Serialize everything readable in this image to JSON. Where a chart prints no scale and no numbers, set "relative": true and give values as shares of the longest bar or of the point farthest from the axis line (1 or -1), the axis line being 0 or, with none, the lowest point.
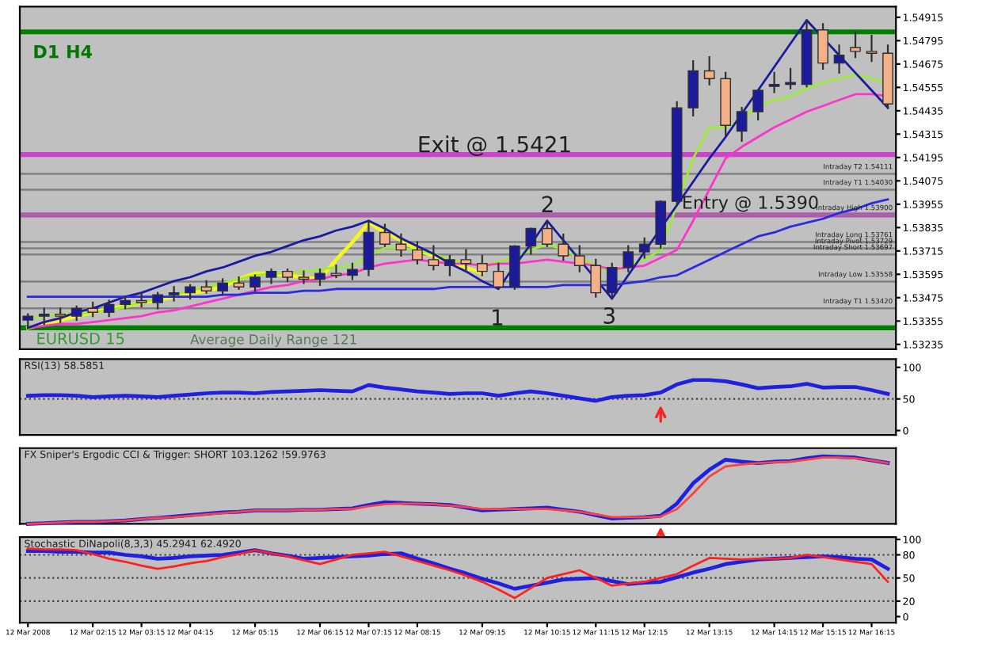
{
  "chart_data": [
    {
      "type": "candlestick",
      "tick_labels": "y",
      "ylim": [
        1.5321,
        1.5497
      ],
      "yticks": [
        1.54915,
        1.54795,
        1.54675,
        1.54555,
        1.54435,
        1.54315,
        1.54195,
        1.54075,
        1.53955,
        1.53835,
        1.53715,
        1.53595,
        1.53475,
        1.53355,
        1.53235
      ],
      "categories": [
        null,
        null,
        null,
        null,
        null,
        null,
        null,
        null,
        null,
        null,
        null,
        null,
        null,
        null,
        null,
        null,
        null,
        null,
        null,
        null,
        null,
        null,
        null,
        null,
        null,
        null,
        null,
        null,
        null,
        null,
        null,
        null,
        null,
        null,
        null,
        null,
        null,
        null,
        null,
        null,
        null,
        null,
        null,
        null,
        null,
        null,
        null,
        null,
        null,
        null,
        null,
        null,
        null,
        null
      ],
      "ohlc": [
        [
          1.5336,
          1.5339,
          1.5332,
          1.5338
        ],
        [
          1.5338,
          1.5342,
          1.5334,
          1.5339
        ],
        [
          1.5339,
          1.5342,
          1.5335,
          1.5338
        ],
        [
          1.5338,
          1.5343,
          1.5336,
          1.5342
        ],
        [
          1.5342,
          1.5345,
          1.5338,
          1.534
        ],
        [
          1.534,
          1.5346,
          1.5338,
          1.5344
        ],
        [
          1.5344,
          1.5348,
          1.5342,
          1.5346
        ],
        [
          1.5346,
          1.535,
          1.5343,
          1.5345
        ],
        [
          1.5345,
          1.535,
          1.5342,
          1.5349
        ],
        [
          1.5349,
          1.5353,
          1.5346,
          1.535
        ],
        [
          1.535,
          1.5354,
          1.5347,
          1.5353
        ],
        [
          1.5353,
          1.5356,
          1.535,
          1.5351
        ],
        [
          1.5351,
          1.5357,
          1.5349,
          1.5355
        ],
        [
          1.5355,
          1.5358,
          1.5352,
          1.5353
        ],
        [
          1.5353,
          1.5359,
          1.5351,
          1.5358
        ],
        [
          1.5358,
          1.5362,
          1.5355,
          1.5361
        ],
        [
          1.5361,
          1.5362,
          1.5356,
          1.5358
        ],
        [
          1.5358,
          1.5361,
          1.5355,
          1.5357
        ],
        [
          1.5357,
          1.5362,
          1.5354,
          1.536
        ],
        [
          1.536,
          1.5364,
          1.5358,
          1.5359
        ],
        [
          1.5359,
          1.5365,
          1.5357,
          1.5362
        ],
        [
          1.5362,
          1.5387,
          1.5359,
          1.5381
        ],
        [
          1.5381,
          1.5385,
          1.5374,
          1.5375
        ],
        [
          1.5375,
          1.538,
          1.5369,
          1.5372
        ],
        [
          1.5372,
          1.5376,
          1.5365,
          1.5367
        ],
        [
          1.5367,
          1.5374,
          1.5362,
          1.5364
        ],
        [
          1.5364,
          1.5369,
          1.5359,
          1.5367
        ],
        [
          1.5367,
          1.5372,
          1.5362,
          1.5365
        ],
        [
          1.5365,
          1.5369,
          1.5359,
          1.5361
        ],
        [
          1.5361,
          1.5365,
          1.5352,
          1.5353
        ],
        [
          1.5353,
          1.5374,
          1.5352,
          1.5374
        ],
        [
          1.5374,
          1.5383,
          1.537,
          1.5383
        ],
        [
          1.5383,
          1.5387,
          1.5374,
          1.5375
        ],
        [
          1.5375,
          1.538,
          1.5367,
          1.5369
        ],
        [
          1.5369,
          1.5374,
          1.5361,
          1.5364
        ],
        [
          1.5364,
          1.5367,
          1.5348,
          1.535
        ],
        [
          1.535,
          1.5365,
          1.5347,
          1.5363
        ],
        [
          1.5363,
          1.5374,
          1.5361,
          1.5371
        ],
        [
          1.5371,
          1.5378,
          1.5368,
          1.5375
        ],
        [
          1.5375,
          1.5397,
          1.5373,
          1.5397
        ],
        [
          1.5397,
          1.5448,
          1.5395,
          1.5445
        ],
        [
          1.5445,
          1.5469,
          1.5441,
          1.5464
        ],
        [
          1.5464,
          1.5471,
          1.5457,
          1.546
        ],
        [
          1.546,
          1.5463,
          1.5431,
          1.5436
        ],
        [
          1.5433,
          1.5445,
          1.5428,
          1.5443
        ],
        [
          1.5443,
          1.5454,
          1.5439,
          1.5454
        ],
        [
          1.5456,
          1.5463,
          1.5453,
          1.5457
        ],
        [
          1.5457,
          1.5465,
          1.5455,
          1.5458
        ],
        [
          1.5457,
          1.549,
          1.5456,
          1.5485
        ],
        [
          1.5485,
          1.5488,
          1.5465,
          1.5468
        ],
        [
          1.5468,
          1.5477,
          1.5463,
          1.5472
        ],
        [
          1.5476,
          1.5484,
          1.5471,
          1.5474
        ],
        [
          1.5474,
          1.5482,
          1.5469,
          1.5473
        ],
        [
          1.5473,
          1.5477,
          1.5445,
          1.5447
        ]
      ],
      "colors": [
        "#1a1a9a",
        "#1a1a9a",
        "#f4b088",
        "#1a1a9a",
        "#f4b088",
        "#1a1a9a",
        "#1a1a9a",
        "#f4b088",
        "#1a1a9a",
        "#1a1a9a",
        "#1a1a9a",
        "#f4b088",
        "#1a1a9a",
        "#f4b088",
        "#1a1a9a",
        "#1a1a9a",
        "#f4b088",
        "#f4b088",
        "#1a1a9a",
        "#f4b088",
        "#1a1a9a",
        "#1a1a9a",
        "#f4b088",
        "#f4b088",
        "#f4b088",
        "#f4b088",
        "#1a1a9a",
        "#f4b088",
        "#f4b088",
        "#f4b088",
        "#1a1a9a",
        "#1a1a9a",
        "#f4b088",
        "#f4b088",
        "#f4b088",
        "#f4b088",
        "#1a1a9a",
        "#1a1a9a",
        "#1a1a9a",
        "#1a1a9a",
        "#1a1a9a",
        "#1a1a9a",
        "#f4b088",
        "#f4b088",
        "#1a1a9a",
        "#1a1a9a",
        "#1a1a9a",
        "#1a1a9a",
        "#1a1a9a",
        "#f4b088",
        "#1a1a9a",
        "#f4b088",
        "#f4b088",
        "#f4b088"
      ],
      "series": [
        {
          "type": "line",
          "color": "#f5f520",
          "values": [
            1.5332,
            1.5334,
            1.5336,
            1.5338,
            1.534,
            1.5342,
            1.5343,
            1.5345,
            1.5346,
            1.5348,
            1.535,
            1.5351,
            1.5353,
            1.5357,
            1.536,
            1.536,
            1.5359,
            1.5358,
            1.5357,
            1.5367,
            1.5376,
            1.5386,
            1.5381,
            1.5377,
            1.5372,
            1.5369,
            1.5366,
            1.5363,
            1.536,
            null,
            null,
            null,
            null,
            null,
            null,
            null,
            null,
            null,
            null,
            null,
            null,
            null,
            null,
            null,
            null,
            null,
            null,
            null,
            null,
            null,
            null,
            null,
            null,
            null
          ]
        },
        {
          "type": "line",
          "color": "#99ee33",
          "values": [
            1.5337,
            1.5338,
            1.5339,
            1.5339,
            1.534,
            1.5341,
            1.5343,
            1.5345,
            1.5347,
            1.5349,
            1.5351,
            1.5353,
            1.5355,
            1.5357,
            1.5359,
            1.536,
            1.536,
            1.5361,
            1.5362,
            1.5363,
            1.5364,
            1.5369,
            1.5373,
            1.5373,
            1.5372,
            1.537,
            1.5367,
            1.5366,
            1.5364,
            1.5366,
            1.5368,
            1.5372,
            1.5375,
            1.5372,
            1.5368,
            1.5364,
            1.536,
            1.5364,
            1.5367,
            1.5372,
            1.5395,
            1.5419,
            1.5435,
            1.5435,
            1.5439,
            1.5446,
            1.5449,
            1.5451,
            1.5455,
            1.5458,
            1.546,
            1.5462,
            1.546,
            1.5458
          ]
        },
        {
          "type": "line",
          "color": "#ff33cc",
          "values": [
            1.5332,
            1.5333,
            1.5334,
            1.5334,
            1.5335,
            1.5336,
            1.5337,
            1.5338,
            1.534,
            1.5341,
            1.5343,
            1.5345,
            1.5347,
            1.5349,
            1.5351,
            1.5353,
            1.5354,
            1.5356,
            1.5357,
            1.5359,
            1.536,
            1.5363,
            1.5365,
            1.5366,
            1.5367,
            1.5366,
            1.5365,
            1.5365,
            1.5364,
            1.5365,
            1.5365,
            1.5366,
            1.5367,
            1.5366,
            1.5365,
            1.5364,
            1.5362,
            1.5363,
            1.5364,
            1.5368,
            1.5372,
            1.5387,
            1.5403,
            1.5419,
            1.5425,
            1.543,
            1.5435,
            1.5439,
            1.5443,
            1.5446,
            1.5449,
            1.5452,
            1.5452,
            1.5451
          ]
        },
        {
          "type": "line",
          "color": "#1a1aa0",
          "values": [
            1.5332,
            1.5335,
            1.5337,
            1.534,
            1.5342,
            1.5345,
            1.5348,
            1.535,
            1.5353,
            1.5356,
            1.5358,
            1.5361,
            1.5363,
            1.5366,
            1.5369,
            1.5371,
            1.5374,
            1.5377,
            1.5379,
            1.5382,
            1.5384,
            1.5387,
            1.5383,
            1.5378,
            1.5374,
            1.537,
            1.5365,
            1.5361,
            1.5356,
            1.5352,
            1.5364,
            1.5375,
            1.5387,
            1.5377,
            1.5367,
            1.5357,
            1.5347,
            1.5359,
            1.5371,
            1.5383,
            1.5395,
            1.5407,
            1.5419,
            1.543,
            1.5442,
            1.5454,
            1.5466,
            1.5478,
            1.549,
            1.5481,
            1.5472,
            1.5463,
            1.5454,
            1.5445
          ]
        },
        {
          "type": "line",
          "color": "#2a2ae0",
          "values": [
            1.5348,
            1.5348,
            1.5348,
            1.5348,
            1.5348,
            1.5348,
            1.5348,
            1.5348,
            1.5348,
            1.5348,
            1.5348,
            1.5348,
            1.5349,
            1.5349,
            1.535,
            1.535,
            1.535,
            1.5351,
            1.5351,
            1.5352,
            1.5352,
            1.5352,
            1.5352,
            1.5352,
            1.5352,
            1.5352,
            1.5353,
            1.5353,
            1.5353,
            1.5353,
            1.5353,
            1.5353,
            1.5353,
            1.5354,
            1.5354,
            1.5354,
            1.5354,
            1.5355,
            1.5356,
            1.5358,
            1.5359,
            1.5363,
            1.5367,
            1.5371,
            1.5375,
            1.5379,
            1.5381,
            1.5384,
            1.5386,
            1.5388,
            1.5391,
            1.5393,
            1.5396,
            1.5398
          ]
        }
      ],
      "ref_lines": [
        {
          "axis": "y",
          "value": 1.5484,
          "color": "#008000"
        },
        {
          "axis": "y",
          "value": 1.5421,
          "color": "#cc44cc"
        },
        {
          "axis": "y",
          "value": 1.539,
          "color": "#cc44cc"
        },
        {
          "axis": "y",
          "value": 1.5332,
          "color": "#008000"
        },
        {
          "axis": "y",
          "value": 1.54111,
          "color": "#808080",
          "label": "Intraday T2 1.54111"
        },
        {
          "axis": "y",
          "value": 1.5403,
          "color": "#808080",
          "label": "Intraday T1 1.54030"
        },
        {
          "axis": "y",
          "value": 1.539,
          "color": "#808080",
          "label": "Intraday High 1.53900"
        },
        {
          "axis": "y",
          "value": 1.53761,
          "color": "#808080",
          "label": "Intraday Long 1.53761"
        },
        {
          "axis": "y",
          "value": 1.53729,
          "color": "#808080",
          "label": "Intraday Pivot 1.53729"
        },
        {
          "axis": "y",
          "value": 1.53697,
          "color": "#808080",
          "label": "Intraday Short 1.53697"
        },
        {
          "axis": "y",
          "value": 1.53558,
          "color": "#808080",
          "label": "Intraday Low 1.53558"
        },
        {
          "axis": "y",
          "value": 1.5342,
          "color": "#808080",
          "label": "Intraday T1 1.53420"
        }
      ],
      "annotations": [
        "D1 H4",
        "Exit @ 1.5421",
        "Entry @ 1.5390",
        "1",
        "2",
        "3",
        "EURUSD 15",
        "Average Daily Range 121"
      ]
    },
    {
      "type": "line",
      "title": "RSI(13) 58.5851",
      "tick_labels": "y",
      "ylim": [
        -7,
        113
      ],
      "yticks": [
        0,
        50,
        100
      ],
      "categories": [
        null,
        null,
        null,
        null,
        null,
        null,
        null,
        null,
        null,
        null,
        null,
        null,
        null,
        null,
        null,
        null,
        null,
        null,
        null,
        null,
        null,
        null,
        null,
        null,
        null,
        null,
        null,
        null,
        null,
        null,
        null,
        null,
        null,
        null,
        null,
        null,
        null,
        null,
        null,
        null,
        null,
        null,
        null,
        null,
        null,
        null,
        null,
        null,
        null,
        null,
        null,
        null,
        null,
        null
      ],
      "series": [
        {
          "color": "#2020e0",
          "values": [
            55,
            56,
            56,
            55,
            53,
            54,
            55,
            54,
            53,
            55,
            57,
            59,
            60,
            60,
            59,
            61,
            62,
            63,
            64,
            63,
            62,
            72,
            68,
            65,
            62,
            60,
            58,
            59,
            59,
            55,
            59,
            62,
            59,
            55,
            51,
            47,
            53,
            55,
            56,
            60,
            73,
            80,
            80,
            78,
            73,
            67,
            69,
            70,
            74,
            68,
            69,
            69,
            64,
            58
          ]
        }
      ],
      "ref_lines": [
        {
          "axis": "y",
          "value": 50,
          "color": "#404040",
          "line_style": "dotted"
        }
      ]
    },
    {
      "type": "line",
      "title": "FX Sniper's Ergodic CCI & Trigger: SHORT 103.1262 !59.9763",
      "relative": true,
      "tick_labels": false,
      "categories": [
        null,
        null,
        null,
        null,
        null,
        null,
        null,
        null,
        null,
        null,
        null,
        null,
        null,
        null,
        null,
        null,
        null,
        null,
        null,
        null,
        null,
        null,
        null,
        null,
        null,
        null,
        null,
        null,
        null,
        null,
        null,
        null,
        null,
        null,
        null,
        null,
        null,
        null,
        null,
        null,
        null,
        null,
        null,
        null,
        null,
        null,
        null,
        null,
        null,
        null,
        null,
        null,
        null,
        null
      ],
      "series": [
        {
          "color": "#2020e0",
          "values": [
            0,
            0.01,
            0.02,
            0.03,
            0.03,
            0.04,
            0.05,
            0.07,
            0.09,
            0.11,
            0.13,
            0.15,
            0.17,
            0.18,
            0.2,
            0.2,
            0.2,
            0.21,
            0.21,
            0.22,
            0.23,
            0.28,
            0.32,
            0.31,
            0.3,
            0.29,
            0.28,
            0.24,
            0.2,
            0.21,
            0.22,
            0.23,
            0.24,
            0.21,
            0.18,
            0.13,
            0.08,
            0.09,
            0.1,
            0.12,
            0.3,
            0.6,
            0.8,
            0.95,
            0.92,
            0.9,
            0.92,
            0.93,
            0.97,
            1,
            0.99,
            0.98,
            0.94,
            0.9
          ]
        },
        {
          "color": "#ff4040",
          "values": [
            0,
            0.01,
            0.02,
            0.03,
            0.03,
            0.04,
            0.05,
            0.07,
            0.09,
            0.1,
            0.12,
            0.14,
            0.16,
            0.18,
            0.2,
            0.2,
            0.2,
            0.21,
            0.21,
            0.22,
            0.22,
            0.26,
            0.29,
            0.3,
            0.3,
            0.29,
            0.27,
            0.25,
            0.22,
            0.22,
            0.22,
            0.22,
            0.22,
            0.2,
            0.18,
            0.14,
            0.1,
            0.1,
            0.1,
            0.11,
            0.22,
            0.45,
            0.7,
            0.85,
            0.88,
            0.9,
            0.91,
            0.92,
            0.95,
            0.98,
            0.98,
            0.97,
            0.94,
            0.9
          ]
        }
      ]
    },
    {
      "type": "line",
      "title": "Stochastic DiNapoli(8,3,3) 45.2941 62.4920",
      "ylim": [
        -8,
        103
      ],
      "yticks": [
        0,
        20,
        50,
        80,
        100
      ],
      "categories": [
        "12 Mar 2008",
        null,
        null,
        null,
        "12 Mar 02:15",
        null,
        null,
        "12 Mar 03:15",
        null,
        null,
        "12 Mar 04:15",
        null,
        null,
        null,
        "12 Mar 05:15",
        null,
        null,
        null,
        "12 Mar 06:15",
        null,
        null,
        "12 Mar 07:15",
        null,
        null,
        "12 Mar 08:15",
        null,
        null,
        null,
        "12 Mar 09:15",
        null,
        null,
        null,
        "12 Mar 10:15",
        null,
        null,
        "12 Mar 11:15",
        null,
        null,
        "12 Mar 12:15",
        null,
        null,
        null,
        "12 Mar 13:15",
        null,
        null,
        null,
        "12 Mar 14:15",
        null,
        null,
        "12 Mar 15:15",
        null,
        null,
        "12 Mar 16:15",
        null
      ],
      "series": [
        {
          "color": "#2020e0",
          "values": [
            85,
            85,
            84,
            84,
            83,
            83,
            80,
            78,
            75,
            76,
            78,
            79,
            80,
            83,
            86,
            82,
            79,
            75,
            76,
            77,
            78,
            79,
            81,
            82,
            75,
            69,
            62,
            56,
            49,
            43,
            36,
            40,
            44,
            48,
            49,
            50,
            46,
            42,
            44,
            45,
            51,
            57,
            62,
            68,
            71,
            74,
            75,
            76,
            77,
            78,
            77,
            75,
            74,
            62
          ]
        },
        {
          "color": "#ff2020",
          "values": [
            88,
            87,
            87,
            86,
            81,
            75,
            71,
            66,
            62,
            65,
            69,
            72,
            77,
            81,
            86,
            82,
            78,
            73,
            68,
            74,
            80,
            82,
            84,
            78,
            72,
            66,
            60,
            53,
            45,
            35,
            24,
            37,
            50,
            55,
            60,
            50,
            40,
            43,
            45,
            50,
            55,
            66,
            76,
            75,
            74,
            75,
            75,
            76,
            80,
            77,
            74,
            71,
            68,
            45
          ]
        }
      ],
      "ref_lines": [
        {
          "axis": "y",
          "value": 20,
          "color": "#404040",
          "line_style": "dotted"
        },
        {
          "axis": "y",
          "value": 50,
          "color": "#404040",
          "line_style": "dotted"
        },
        {
          "axis": "y",
          "value": 80,
          "color": "#404040",
          "line_style": "dotted"
        }
      ]
    }
  ]
}
